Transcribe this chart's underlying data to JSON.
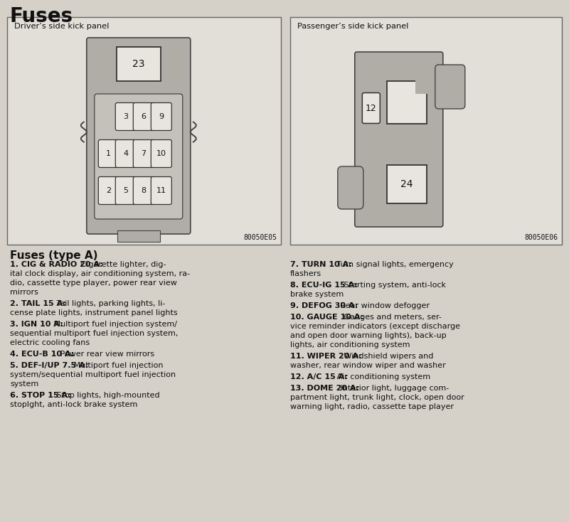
{
  "title": "Fuses",
  "bg_color": "#d5d1c8",
  "panel_bg": "#e2dfd8",
  "fuse_body_color": "#b0ada6",
  "fuse_inner_color": "#c4c1ba",
  "fuse_slot_color": "#e8e5de",
  "white": "#ffffff",
  "black": "#111111",
  "left_panel_label": "Driver’s side kick panel",
  "right_panel_label": "Passenger’s side kick panel",
  "left_code": "80050E05",
  "right_code": "80050E06",
  "left_fuse_top": "23",
  "right_fuse_small": "12",
  "right_fuse_large": "24",
  "left_fuses_row1": [
    "3",
    "6",
    "9"
  ],
  "left_fuses_row2": [
    "1",
    "4",
    "7",
    "10"
  ],
  "left_fuses_row3": [
    "2",
    "5",
    "8",
    "11"
  ],
  "subtitle": "Fuses (type A)",
  "entries_left": [
    [
      "1",
      "CIG & RADIO 20 A:",
      "Cigarette lighter, dig-\nital clock display, air conditioning system, ra-\ndio, cassette type player, power rear view\nmirrors"
    ],
    [
      "2",
      "TAIL 15 A:",
      "Tail lights, parking lights, li-\ncense plate lights, instrument panel lights"
    ],
    [
      "3",
      "IGN 10 A:",
      "Multiport fuel injection system/\nsequential multiport fuel injection system,\nelectric cooling fans"
    ],
    [
      "4",
      "ECU-B 10 A:",
      "Power rear view mirrors"
    ],
    [
      "5",
      "DEF-I/UP 7.5 A:",
      "Multiport fuel injection\nsystem/sequential multiport fuel injection\nsystem"
    ],
    [
      "6",
      "STOP 15 A:",
      "Stop lights, high-mounted\nstoplght, anti-lock brake system"
    ]
  ],
  "entries_right": [
    [
      "7",
      "TURN 10 A:",
      "Turn signal lights, emergency\nflashers"
    ],
    [
      "8",
      "ECU-IG 15 A:",
      "Starting system, anti-lock\nbrake system"
    ],
    [
      "9",
      "DEFOG 30 A:",
      "Rear window defogger"
    ],
    [
      "10",
      "GAUGE 10 A:",
      "Gauges and meters, ser-\nvice reminder indicators (except discharge\nand open door warning lights), back-up\nlights, air conditioning system"
    ],
    [
      "11",
      "WIPER 20 A:",
      "Windshield wipers and\nwasher, rear window wiper and washer"
    ],
    [
      "12",
      "A/C 15 A:",
      "Air conditioning system"
    ],
    [
      "13",
      "DOME 20 A:",
      "Interior light, luggage com-\npartment light, trunk light, clock, open door\nwarning light, radio, cassette tape player"
    ]
  ]
}
